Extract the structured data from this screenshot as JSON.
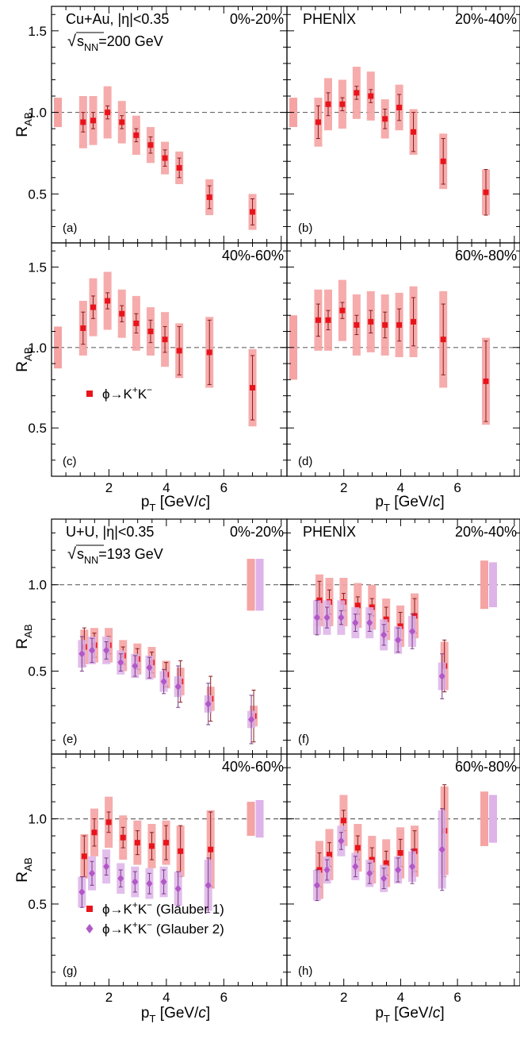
{
  "colors": {
    "red": "#e8141c",
    "red_sys": "#f5a3a3",
    "purple": "#b158c6",
    "purple_sys": "#ddb3e8",
    "reference_line": "#666666"
  },
  "chart_data": [
    {
      "type": "scatter",
      "group": "Cu+Au",
      "xlim": [
        0,
        8.2
      ],
      "ylim": [
        0.2,
        1.65
      ],
      "yticks": [
        0.5,
        1.0,
        1.5
      ],
      "ytick_labels": [
        "0.5",
        "1.0",
        "1.5"
      ],
      "xticks": [
        2,
        4,
        6
      ],
      "xtick_labels": [
        "2",
        "4",
        "6"
      ],
      "ylabel_main": "R",
      "ylabel_sub": "AB",
      "xlabel_main": "p",
      "xlabel_sub": "T",
      "xlabel_unit": "[GeV/c]",
      "system_text": "Cu+Au, |η|<0.35",
      "energy_sqrt": "√",
      "energy_s": "s",
      "energy_sub": "NN",
      "energy_value": "=200 GeV",
      "experiment": "PHENIX",
      "legend": [
        "ϕ→K⁺K⁻"
      ],
      "panels": [
        {
          "id": "a",
          "label": "(a)",
          "centrality": "0%-20%",
          "global_unc": 0.09,
          "series": [
            {
              "name": "ϕ→K⁺K⁻",
              "x": [
                1.1,
                1.45,
                1.95,
                2.45,
                2.95,
                3.45,
                3.95,
                4.45,
                5.5,
                7.0
              ],
              "y": [
                0.94,
                0.95,
                1.0,
                0.94,
                0.86,
                0.8,
                0.72,
                0.66,
                0.48,
                0.39
              ],
              "stat": [
                0.06,
                0.05,
                0.04,
                0.04,
                0.04,
                0.05,
                0.05,
                0.06,
                0.07,
                0.08
              ],
              "sys": [
                0.16,
                0.15,
                0.16,
                0.13,
                0.12,
                0.11,
                0.1,
                0.1,
                0.11,
                0.11
              ]
            }
          ]
        },
        {
          "id": "b",
          "label": "(b)",
          "centrality": "20%-40%",
          "global_unc": 0.09,
          "series": [
            {
              "name": "ϕ→K⁺K⁻",
              "x": [
                1.1,
                1.45,
                1.95,
                2.45,
                2.95,
                3.45,
                3.95,
                4.45,
                5.5,
                7.0
              ],
              "y": [
                0.94,
                1.05,
                1.05,
                1.12,
                1.1,
                0.96,
                1.03,
                0.88,
                0.7,
                0.51
              ],
              "stat": [
                0.1,
                0.07,
                0.04,
                0.04,
                0.04,
                0.06,
                0.08,
                0.12,
                0.14,
                0.14
              ],
              "sys": [
                0.15,
                0.16,
                0.15,
                0.16,
                0.15,
                0.12,
                0.14,
                0.14,
                0.17,
                0.14
              ]
            }
          ]
        },
        {
          "id": "c",
          "label": "(c)",
          "centrality": "40%-60%",
          "global_unc": 0.13,
          "series": [
            {
              "name": "ϕ→K⁺K⁻",
              "x": [
                1.1,
                1.45,
                1.95,
                2.45,
                2.95,
                3.45,
                3.95,
                4.45,
                5.5,
                7.0
              ],
              "y": [
                1.12,
                1.25,
                1.29,
                1.21,
                1.15,
                1.1,
                1.05,
                0.98,
                0.97,
                0.75
              ],
              "stat": [
                0.1,
                0.07,
                0.05,
                0.05,
                0.06,
                0.07,
                0.08,
                0.15,
                0.2,
                0.2
              ],
              "sys": [
                0.17,
                0.18,
                0.18,
                0.15,
                0.17,
                0.15,
                0.17,
                0.17,
                0.22,
                0.24
              ]
            }
          ]
        },
        {
          "id": "d",
          "label": "(d)",
          "centrality": "60%-80%",
          "global_unc": 0.2,
          "series": [
            {
              "name": "ϕ→K⁺K⁻",
              "x": [
                1.1,
                1.45,
                1.95,
                2.45,
                2.95,
                3.45,
                3.95,
                4.45,
                5.5,
                7.0
              ],
              "y": [
                1.17,
                1.17,
                1.23,
                1.14,
                1.16,
                1.14,
                1.14,
                1.16,
                1.05,
                0.79
              ],
              "stat": [
                0.1,
                0.06,
                0.05,
                0.06,
                0.07,
                0.08,
                0.1,
                0.15,
                0.22,
                0.25
              ],
              "sys": [
                0.19,
                0.19,
                0.19,
                0.19,
                0.19,
                0.19,
                0.2,
                0.22,
                0.3,
                0.27
              ]
            }
          ]
        }
      ]
    },
    {
      "type": "scatter",
      "group": "U+U",
      "xlim": [
        0,
        8.2
      ],
      "ylim": [
        0.02,
        1.38
      ],
      "yticks": [
        0.5,
        1.0
      ],
      "ytick_labels": [
        "0.5",
        "1.0"
      ],
      "xticks": [
        2,
        4,
        6
      ],
      "xtick_labels": [
        "2",
        "4",
        "6"
      ],
      "ylabel_main": "R",
      "ylabel_sub": "AB",
      "xlabel_main": "p",
      "xlabel_sub": "T",
      "xlabel_unit": "[GeV/c]",
      "system_text": "U+U, |η|<0.35",
      "energy_sqrt": "√",
      "energy_s": "s",
      "energy_sub": "NN",
      "energy_value": "=193 GeV",
      "experiment": "PHENIX",
      "legend": [
        "ϕ→K⁺K⁻ (Glauber 1)",
        "ϕ→K⁺K⁻ (Glauber 2)"
      ],
      "panels": [
        {
          "id": "e",
          "label": "(e)",
          "centrality": "0%-20%",
          "global_unc": [
            0.15,
            0.15
          ],
          "series": [
            {
              "name": "ϕ→K⁺K⁻ (Glauber 1)",
              "x": [
                1.1,
                1.45,
                1.95,
                2.45,
                2.95,
                3.45,
                3.95,
                4.45,
                5.5,
                7.0
              ],
              "y": [
                0.64,
                0.65,
                0.65,
                0.59,
                0.57,
                0.55,
                0.48,
                0.44,
                0.34,
                0.24
              ],
              "stat": [
                0.11,
                0.07,
                0.05,
                0.05,
                0.06,
                0.06,
                0.07,
                0.12,
                0.13,
                0.15
              ],
              "sys": [
                0.1,
                0.1,
                0.1,
                0.09,
                0.09,
                0.09,
                0.08,
                0.08,
                0.07,
                0.06
              ]
            },
            {
              "name": "ϕ→K⁺K⁻ (Glauber 2)",
              "x": [
                1.1,
                1.45,
                1.95,
                2.45,
                2.95,
                3.45,
                3.95,
                4.45,
                5.5,
                7.0
              ],
              "y": [
                0.6,
                0.62,
                0.62,
                0.55,
                0.53,
                0.52,
                0.44,
                0.41,
                0.31,
                0.22
              ],
              "stat": [
                0.1,
                0.07,
                0.05,
                0.05,
                0.06,
                0.06,
                0.07,
                0.12,
                0.12,
                0.14
              ],
              "sys": [
                0.08,
                0.08,
                0.08,
                0.07,
                0.07,
                0.07,
                0.06,
                0.06,
                0.05,
                0.05
              ]
            }
          ]
        },
        {
          "id": "f",
          "label": "(f)",
          "centrality": "20%-40%",
          "global_unc": [
            0.14,
            0.13
          ],
          "series": [
            {
              "name": "ϕ→K⁺K⁻ (Glauber 1)",
              "x": [
                1.1,
                1.45,
                1.95,
                2.45,
                2.95,
                3.45,
                3.95,
                4.45,
                5.5
              ],
              "y": [
                0.91,
                0.9,
                0.9,
                0.88,
                0.87,
                0.8,
                0.76,
                0.82,
                0.53
              ],
              "stat": [
                0.11,
                0.07,
                0.05,
                0.05,
                0.05,
                0.07,
                0.08,
                0.1,
                0.15
              ],
              "sys": [
                0.15,
                0.14,
                0.14,
                0.13,
                0.13,
                0.12,
                0.12,
                0.13,
                0.14
              ]
            },
            {
              "name": "ϕ→K⁺K⁻ (Glauber 2)",
              "x": [
                1.1,
                1.45,
                1.95,
                2.45,
                2.95,
                3.45,
                3.95,
                4.45,
                5.5
              ],
              "y": [
                0.81,
                0.81,
                0.81,
                0.78,
                0.78,
                0.71,
                0.68,
                0.73,
                0.47
              ],
              "stat": [
                0.1,
                0.06,
                0.04,
                0.05,
                0.05,
                0.06,
                0.07,
                0.1,
                0.13
              ],
              "sys": [
                0.1,
                0.1,
                0.1,
                0.09,
                0.09,
                0.09,
                0.08,
                0.09,
                0.08
              ]
            }
          ]
        },
        {
          "id": "g",
          "label": "(g)",
          "centrality": "40%-60%",
          "global_unc": [
            0.1,
            0.11
          ],
          "series": [
            {
              "name": "ϕ→K⁺K⁻ (Glauber 1)",
              "x": [
                1.1,
                1.45,
                1.95,
                2.45,
                2.95,
                3.45,
                3.95,
                4.45,
                5.5
              ],
              "y": [
                0.78,
                0.92,
                0.98,
                0.89,
                0.86,
                0.84,
                0.86,
                0.81,
                0.82
              ],
              "stat": [
                0.12,
                0.08,
                0.06,
                0.06,
                0.07,
                0.08,
                0.1,
                0.15,
                0.22
              ],
              "sys": [
                0.13,
                0.14,
                0.15,
                0.13,
                0.13,
                0.13,
                0.13,
                0.15,
                0.23
              ]
            },
            {
              "name": "ϕ→K⁺K⁻ (Glauber 2)",
              "x": [
                1.1,
                1.45,
                1.95,
                2.45,
                2.95,
                3.45,
                3.95,
                4.45,
                5.5
              ],
              "y": [
                0.57,
                0.68,
                0.72,
                0.65,
                0.63,
                0.62,
                0.63,
                0.59,
                0.61
              ],
              "stat": [
                0.09,
                0.07,
                0.05,
                0.05,
                0.06,
                0.06,
                0.07,
                0.1,
                0.16
              ],
              "sys": [
                0.09,
                0.1,
                0.1,
                0.09,
                0.09,
                0.09,
                0.09,
                0.1,
                0.15
              ]
            }
          ]
        },
        {
          "id": "h",
          "label": "(h)",
          "centrality": "60%-80%",
          "global_unc": [
            0.16,
            0.14
          ],
          "series": [
            {
              "name": "ϕ→K⁺K⁻ (Glauber 1)",
              "x": [
                1.1,
                1.45,
                1.95,
                2.45,
                2.95,
                3.45,
                3.95,
                4.45,
                5.5
              ],
              "y": [
                0.7,
                0.79,
                0.99,
                0.83,
                0.76,
                0.74,
                0.8,
                0.81,
                0.93
              ],
              "stat": [
                0.1,
                0.07,
                0.06,
                0.07,
                0.07,
                0.07,
                0.08,
                0.12,
                0.27
              ],
              "sys": [
                0.17,
                0.15,
                0.15,
                0.14,
                0.14,
                0.14,
                0.15,
                0.15,
                0.26
              ]
            },
            {
              "name": "ϕ→K⁺K⁻ (Glauber 2)",
              "x": [
                1.1,
                1.45,
                1.95,
                2.45,
                2.95,
                3.45,
                3.95,
                4.45,
                5.5
              ],
              "y": [
                0.61,
                0.7,
                0.87,
                0.72,
                0.68,
                0.65,
                0.7,
                0.72,
                0.82
              ],
              "stat": [
                0.09,
                0.06,
                0.05,
                0.06,
                0.06,
                0.06,
                0.07,
                0.1,
                0.24
              ],
              "sys": [
                0.09,
                0.08,
                0.09,
                0.08,
                0.08,
                0.08,
                0.08,
                0.09,
                0.23
              ]
            }
          ]
        }
      ]
    }
  ]
}
